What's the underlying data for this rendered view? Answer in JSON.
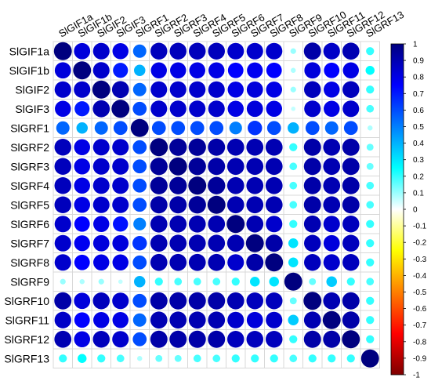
{
  "chart_data": {
    "type": "heatmap",
    "subtype": "correlation-circles",
    "title": "",
    "labels": [
      "SlGIF1a",
      "SlGIF1b",
      "SlGIF2",
      "SlGIF3",
      "SlGRF1",
      "SlGRF2",
      "SlGRF3",
      "SlGRF4",
      "SlGRF5",
      "SlGRF6",
      "SlGRF7",
      "SlGRF8",
      "SlGRF9",
      "SlGRF10",
      "SlGRF11",
      "SlGRF12",
      "SlGRF13"
    ],
    "matrix": [
      [
        1.0,
        0.82,
        0.85,
        0.8,
        0.55,
        0.88,
        0.88,
        0.88,
        0.88,
        0.85,
        0.85,
        0.85,
        0.1,
        0.92,
        0.86,
        0.9,
        0.2
      ],
      [
        0.82,
        1.0,
        0.85,
        0.7,
        0.4,
        0.8,
        0.8,
        0.8,
        0.8,
        0.75,
        0.78,
        0.75,
        0.08,
        0.82,
        0.75,
        0.8,
        0.25
      ],
      [
        0.85,
        0.85,
        1.0,
        0.9,
        0.55,
        0.85,
        0.85,
        0.85,
        0.85,
        0.8,
        0.82,
        0.8,
        0.1,
        0.88,
        0.8,
        0.88,
        0.2
      ],
      [
        0.8,
        0.7,
        0.9,
        1.0,
        0.6,
        0.85,
        0.85,
        0.85,
        0.85,
        0.8,
        0.82,
        0.8,
        0.06,
        0.85,
        0.8,
        0.85,
        0.18
      ],
      [
        0.55,
        0.4,
        0.55,
        0.6,
        1.0,
        0.6,
        0.6,
        0.6,
        0.6,
        0.5,
        0.65,
        0.6,
        0.4,
        0.6,
        0.55,
        0.6,
        0.08
      ],
      [
        0.88,
        0.8,
        0.85,
        0.85,
        0.6,
        1.0,
        0.95,
        0.95,
        0.92,
        0.9,
        0.9,
        0.9,
        0.2,
        0.92,
        0.9,
        0.92,
        0.15
      ],
      [
        0.88,
        0.8,
        0.85,
        0.85,
        0.6,
        0.95,
        1.0,
        0.95,
        0.92,
        0.9,
        0.9,
        0.9,
        0.18,
        0.92,
        0.9,
        0.92,
        0.15
      ],
      [
        0.88,
        0.8,
        0.85,
        0.85,
        0.6,
        0.95,
        0.95,
        1.0,
        0.95,
        0.9,
        0.9,
        0.9,
        0.18,
        0.92,
        0.9,
        0.92,
        0.18
      ],
      [
        0.88,
        0.8,
        0.85,
        0.85,
        0.6,
        0.92,
        0.92,
        0.95,
        1.0,
        0.9,
        0.9,
        0.9,
        0.18,
        0.92,
        0.9,
        0.92,
        0.18
      ],
      [
        0.85,
        0.75,
        0.8,
        0.72,
        0.5,
        0.9,
        0.9,
        0.9,
        0.9,
        1.0,
        0.9,
        0.85,
        0.2,
        0.9,
        0.85,
        0.88,
        0.2
      ],
      [
        0.85,
        0.78,
        0.82,
        0.82,
        0.65,
        0.9,
        0.9,
        0.9,
        0.9,
        0.9,
        1.0,
        0.92,
        0.3,
        0.88,
        0.82,
        0.88,
        0.2
      ],
      [
        0.85,
        0.75,
        0.8,
        0.8,
        0.6,
        0.9,
        0.9,
        0.9,
        0.9,
        0.85,
        0.92,
        1.0,
        0.3,
        0.88,
        0.85,
        0.88,
        0.2
      ],
      [
        0.1,
        0.08,
        0.1,
        0.06,
        0.4,
        0.2,
        0.18,
        0.18,
        0.18,
        0.2,
        0.3,
        0.3,
        1.0,
        0.15,
        0.35,
        0.2,
        0.18
      ],
      [
        0.92,
        0.82,
        0.88,
        0.85,
        0.6,
        0.92,
        0.92,
        0.92,
        0.92,
        0.9,
        0.88,
        0.88,
        0.15,
        1.0,
        0.9,
        0.92,
        0.2
      ],
      [
        0.86,
        0.75,
        0.8,
        0.8,
        0.55,
        0.9,
        0.9,
        0.9,
        0.9,
        0.85,
        0.82,
        0.85,
        0.35,
        0.9,
        1.0,
        0.92,
        0.2
      ],
      [
        0.9,
        0.8,
        0.88,
        0.85,
        0.6,
        0.92,
        0.92,
        0.92,
        0.92,
        0.88,
        0.88,
        0.88,
        0.2,
        0.92,
        0.92,
        1.0,
        0.2
      ],
      [
        0.2,
        0.25,
        0.2,
        0.18,
        0.08,
        0.15,
        0.15,
        0.18,
        0.18,
        0.2,
        0.2,
        0.2,
        0.18,
        0.2,
        0.2,
        0.2,
        1.0
      ]
    ],
    "color_scale": {
      "min": -1,
      "max": 1,
      "ticks": [
        "1",
        "0.9",
        "0.8",
        "0.7",
        "0.6",
        "0.5",
        "0.4",
        "0.3",
        "0.2",
        "0.1",
        "0",
        "-0.1",
        "-0.2",
        "-0.3",
        "-0.4",
        "-0.5",
        "-0.6",
        "-0.7",
        "-0.8",
        "-0.9",
        "-1"
      ],
      "stops": [
        "#00007F",
        "#0000FF",
        "#007FFF",
        "#00FFFF",
        "#FFFFFF",
        "#FFFF00",
        "#FF7F00",
        "#FF0000",
        "#7F0000"
      ]
    },
    "legend_position": "right",
    "grid": true
  }
}
